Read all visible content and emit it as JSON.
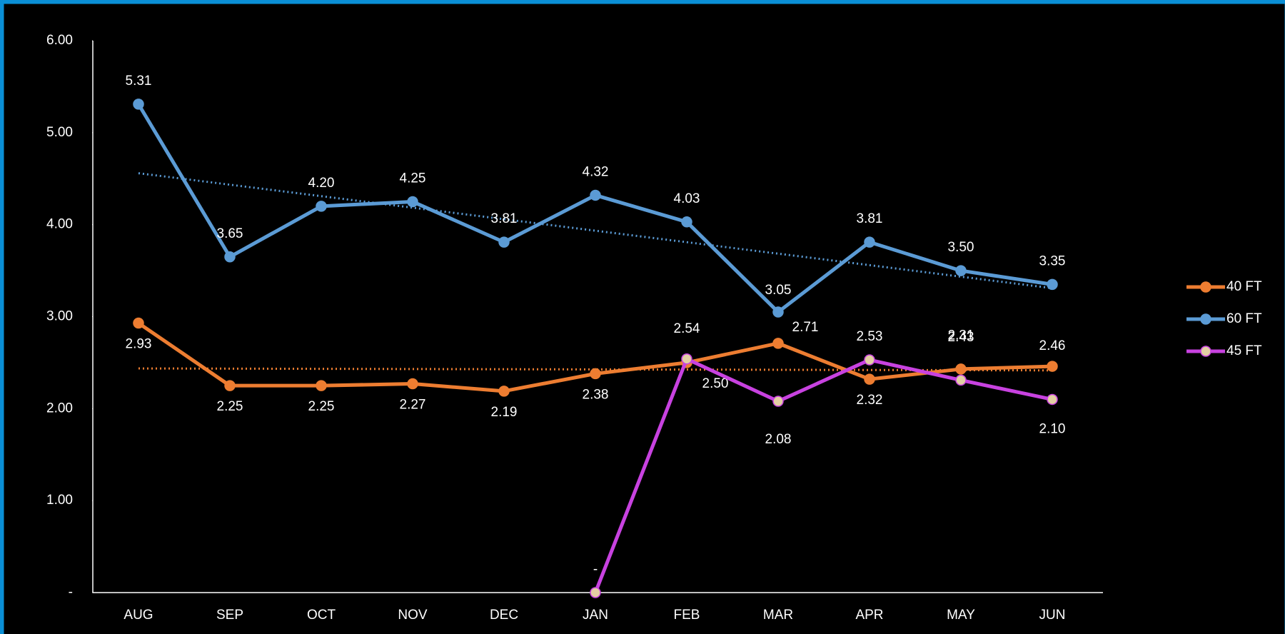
{
  "chart_data": {
    "type": "line",
    "categories": [
      "AUG",
      "SEP",
      "OCT",
      "NOV",
      "DEC",
      "JAN",
      "FEB",
      "MAR",
      "APR",
      "MAY",
      "JUN"
    ],
    "series": [
      {
        "name": "40 FT",
        "color": "#ed7d31",
        "marker_color": "#ed7d31",
        "trendline": true,
        "values": [
          2.93,
          2.25,
          2.25,
          2.27,
          2.19,
          2.38,
          2.5,
          2.71,
          2.32,
          2.43,
          2.46
        ],
        "value_labels": [
          "2.93",
          "2.25",
          "2.25",
          "2.27",
          "2.19",
          "2.38",
          "2.50",
          "2.71",
          "2.32",
          "2.43",
          "2.46"
        ]
      },
      {
        "name": "60 FT",
        "color": "#5b9bd5",
        "marker_color": "#5b9bd5",
        "trendline": true,
        "values": [
          5.31,
          3.65,
          4.2,
          4.25,
          3.81,
          4.32,
          4.03,
          3.05,
          3.81,
          3.5,
          3.35
        ],
        "value_labels": [
          "5.31",
          "3.65",
          "4.20",
          "4.25",
          "3.81",
          "4.32",
          "4.03",
          "3.05",
          "3.81",
          "3.50",
          "3.35"
        ]
      },
      {
        "name": "45 FT",
        "color": "#c842e0",
        "marker_color": "#e3cfa4",
        "trendline": false,
        "values": [
          null,
          null,
          null,
          null,
          null,
          0,
          2.54,
          2.08,
          2.53,
          2.31,
          2.1
        ],
        "value_labels": [
          null,
          null,
          null,
          null,
          null,
          "-",
          "2.54",
          "2.08",
          "2.53",
          "2.31",
          "2.10"
        ]
      }
    ],
    "ylim": [
      0,
      6
    ],
    "yticks": [
      {
        "value": 0,
        "label": "-"
      },
      {
        "value": 1,
        "label": "1.00"
      },
      {
        "value": 2,
        "label": "2.00"
      },
      {
        "value": 3,
        "label": "3.00"
      },
      {
        "value": 4,
        "label": "4.00"
      },
      {
        "value": 5,
        "label": "5.00"
      },
      {
        "value": 6,
        "label": "6.00"
      }
    ],
    "legend": "right"
  }
}
